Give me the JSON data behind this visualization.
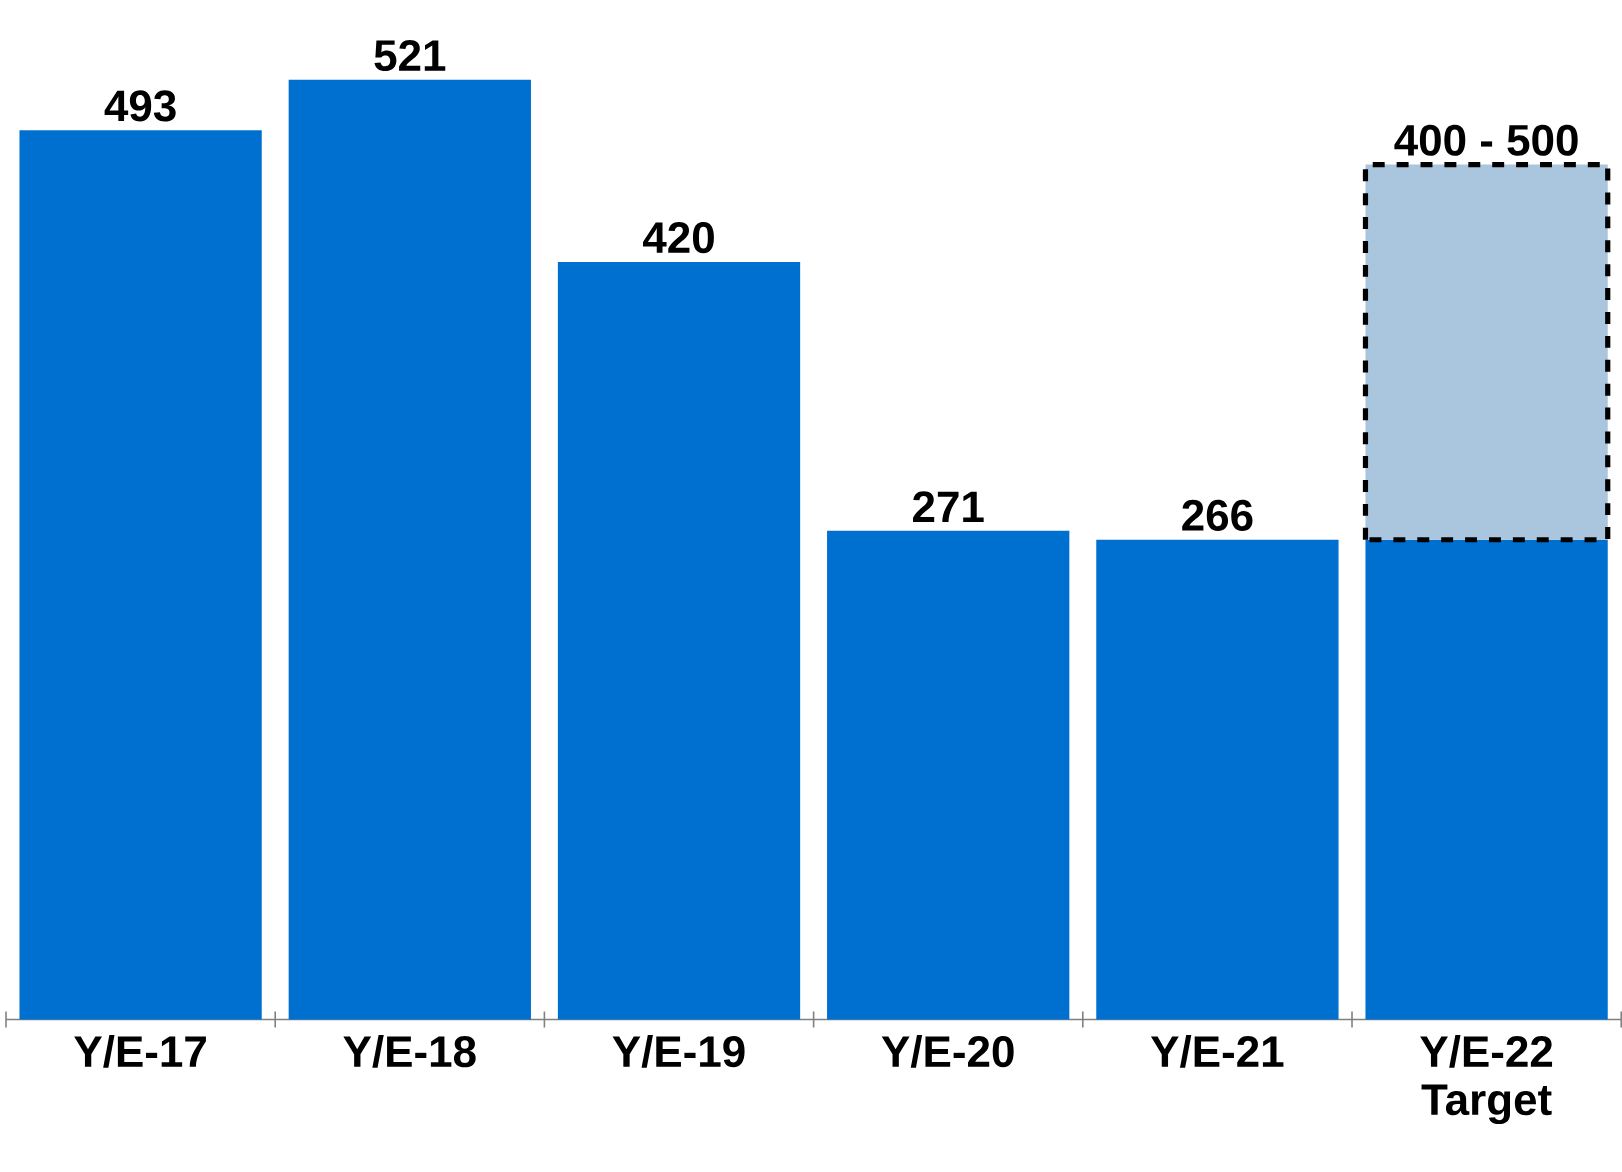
{
  "chart_data": {
    "type": "bar",
    "categories": [
      "Y/E-17",
      "Y/E-18",
      "Y/E-19",
      "Y/E-20",
      "Y/E-21",
      "Y/E-22 Target"
    ],
    "stacked": true,
    "series": [
      {
        "color": "#0070d0",
        "values": [
          493,
          521,
          420,
          271,
          266,
          266
        ],
        "value_labels": [
          "493",
          "521",
          "420",
          "271",
          "266",
          null
        ]
      },
      {
        "color": "#a9c6de",
        "line_style": "dashed",
        "values": [
          null,
          null,
          null,
          null,
          null,
          208
        ]
      }
    ],
    "annotations": [
      {
        "text": "400 - 500",
        "x": "Y/E-22 Target",
        "y": 474
      }
    ]
  }
}
